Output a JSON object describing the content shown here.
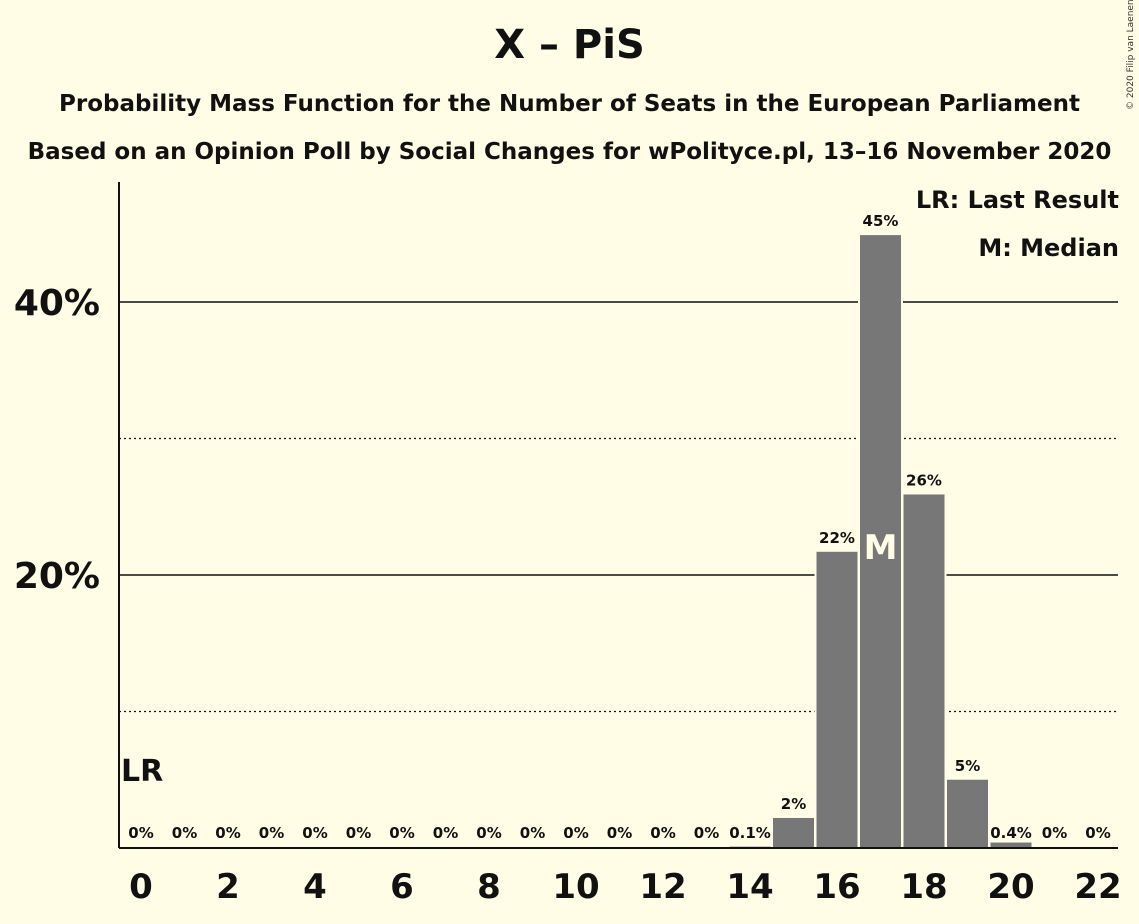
{
  "header": {
    "title": "X – PiS",
    "subtitle_1": "Probability Mass Function for the Number of Seats in the European Parliament",
    "subtitle_2": "Based on an Opinion Poll by Social Changes for wPolityce.pl, 13–16 November 2020",
    "copyright": "© 2020 Filip van Laenen"
  },
  "legend": {
    "last_result": "LR: Last Result",
    "median": "M: Median"
  },
  "chart_data": {
    "type": "bar",
    "title": "X – PiS",
    "xlabel": "",
    "ylabel": "",
    "categories": [
      0,
      1,
      2,
      3,
      4,
      5,
      6,
      7,
      8,
      9,
      10,
      11,
      12,
      13,
      14,
      15,
      16,
      17,
      18,
      19,
      20,
      21,
      22
    ],
    "values": [
      0,
      0,
      0,
      0,
      0,
      0,
      0,
      0,
      0,
      0,
      0,
      0,
      0,
      0,
      0.1,
      2.2,
      21.7,
      44.9,
      25.9,
      5,
      0.4,
      0,
      0
    ],
    "data_labels": [
      "0%",
      "0%",
      "0%",
      "0%",
      "0%",
      "0%",
      "0%",
      "0%",
      "0%",
      "0%",
      "0%",
      "0%",
      "0%",
      "0%",
      "0.1%",
      "2%",
      "22%",
      "45%",
      "26%",
      "5%",
      "0.4%",
      "0%",
      "0%"
    ],
    "x_tick_labels": [
      "0",
      "2",
      "4",
      "6",
      "8",
      "10",
      "12",
      "14",
      "16",
      "18",
      "20",
      "22"
    ],
    "y_ticks": [
      {
        "value": 10,
        "label": "",
        "style": "dotted"
      },
      {
        "value": 20,
        "label": "20%",
        "style": "solid"
      },
      {
        "value": 30,
        "label": "",
        "style": "dotted"
      },
      {
        "value": 40,
        "label": "40%",
        "style": "solid"
      }
    ],
    "ylim": [
      0,
      49
    ],
    "last_result_seat": 0,
    "last_result_label": "LR",
    "median_seat": 17,
    "median_label": "M",
    "bar_color": "#777777",
    "background": "#fffde6"
  }
}
